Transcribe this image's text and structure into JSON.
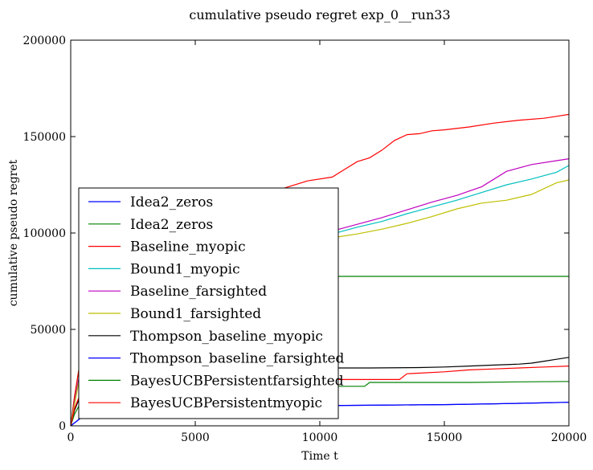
{
  "chart_data": {
    "type": "line",
    "title": "cumulative pseudo regret exp_0__run33",
    "xlabel": "Time t",
    "ylabel": "cumulative pseudo regret",
    "xlim": [
      0,
      20000
    ],
    "ylim": [
      0,
      200000
    ],
    "x_ticks": [
      0,
      5000,
      10000,
      15000,
      20000
    ],
    "y_ticks": [
      0,
      50000,
      100000,
      150000,
      200000
    ],
    "x_tick_labels": [
      "0",
      "5000",
      "10000",
      "15000",
      "20000"
    ],
    "y_tick_labels": [
      "0",
      "50000",
      "100000",
      "150000",
      "200000"
    ],
    "grid": false,
    "legend_position": "lower-left",
    "series": [
      {
        "name": "Idea2_zeros",
        "color": "#0000ff",
        "x": [
          0,
          150,
          400,
          800,
          1500,
          2500,
          4000,
          5500,
          7000,
          8500,
          10000,
          11000,
          13000,
          15000,
          17000,
          19000,
          20000
        ],
        "y": [
          0,
          1500,
          4000,
          6500,
          8000,
          9000,
          9800,
          10000,
          10200,
          10300,
          10400,
          10600,
          10800,
          11000,
          11400,
          11900,
          12200
        ]
      },
      {
        "name": "Idea2_zeros",
        "color": "#008000",
        "x": [
          0,
          150,
          400,
          800,
          1500,
          2500,
          3500,
          4500,
          5000,
          5200,
          20000
        ],
        "y": [
          0,
          15000,
          35000,
          48000,
          58000,
          66000,
          72000,
          76000,
          77000,
          77500,
          77500
        ]
      },
      {
        "name": "Baseline_myopic",
        "color": "#ff0000",
        "x": [
          0,
          150,
          400,
          800,
          1500,
          2500,
          3500,
          4500,
          5500,
          6500,
          7500,
          8500,
          9500,
          10500,
          11000,
          11500,
          12000,
          12500,
          13000,
          13500,
          14000,
          14500,
          15000,
          16000,
          17000,
          18000,
          19000,
          19500,
          20000
        ],
        "y": [
          0,
          15000,
          35000,
          52000,
          65000,
          78000,
          90000,
          100000,
          107000,
          113000,
          118000,
          123000,
          127000,
          129000,
          133000,
          137000,
          139000,
          143000,
          148000,
          151000,
          151500,
          153000,
          153500,
          155000,
          157000,
          158500,
          159500,
          160500,
          161500
        ]
      },
      {
        "name": "Bound1_myopic",
        "color": "#00bfbf",
        "x": [
          0,
          150,
          400,
          800,
          1500,
          2500,
          3500,
          4500,
          5500,
          6500,
          7500,
          8500,
          9500,
          10500,
          11500,
          12500,
          13500,
          14500,
          15500,
          16500,
          17500,
          18500,
          19500,
          20000
        ],
        "y": [
          0,
          12000,
          30000,
          45000,
          56000,
          65000,
          72000,
          78000,
          83000,
          88000,
          92000,
          95000,
          97000,
          99500,
          103000,
          106000,
          110000,
          113500,
          117000,
          121000,
          125000,
          128000,
          131500,
          135000
        ]
      },
      {
        "name": "Baseline_farsighted",
        "color": "#bf00bf",
        "x": [
          0,
          150,
          400,
          800,
          1500,
          2500,
          3500,
          4500,
          5500,
          6500,
          7500,
          8500,
          9500,
          10500,
          11500,
          12500,
          13500,
          14500,
          15500,
          16500,
          17500,
          18500,
          19500,
          20000
        ],
        "y": [
          0,
          12000,
          30000,
          46000,
          57000,
          66000,
          73000,
          79000,
          84000,
          89000,
          93000,
          96000,
          98000,
          101000,
          104500,
          108000,
          112000,
          116000,
          119500,
          124000,
          132000,
          135500,
          137500,
          138500
        ]
      },
      {
        "name": "Bound1_farsighted",
        "color": "#bfbf00",
        "x": [
          0,
          150,
          400,
          800,
          1500,
          2500,
          3500,
          4500,
          5500,
          6500,
          7500,
          8500,
          9500,
          10500,
          11500,
          12500,
          13500,
          14500,
          15500,
          16500,
          17500,
          18500,
          19500,
          20000
        ],
        "y": [
          0,
          11000,
          28000,
          43000,
          54000,
          63000,
          70000,
          76000,
          81000,
          85000,
          89000,
          92000,
          95000,
          97500,
          99500,
          102000,
          105000,
          108500,
          112500,
          115500,
          117000,
          120000,
          126000,
          127500
        ]
      },
      {
        "name": "Thompson_baseline_myopic",
        "color": "#000000",
        "x": [
          0,
          150,
          400,
          800,
          1500,
          2500,
          3500,
          4500,
          6000,
          8000,
          10000,
          12000,
          14000,
          15000,
          16000,
          17000,
          18000,
          18500,
          19000,
          19500,
          20000
        ],
        "y": [
          0,
          8000,
          16000,
          21000,
          24000,
          26500,
          28000,
          29000,
          29500,
          30000,
          30000,
          30000,
          30200,
          30500,
          31000,
          31500,
          32000,
          32500,
          33500,
          34500,
          35500
        ]
      },
      {
        "name": "Thompson_baseline_farsighted",
        "color": "#0000ff",
        "x": [
          0,
          150,
          400,
          800,
          1500,
          2500,
          4000,
          5500,
          7000,
          8500,
          10000,
          11000,
          13000,
          15000,
          17000,
          19000,
          20000
        ],
        "y": [
          0,
          1500,
          4000,
          6500,
          8000,
          9000,
          9800,
          10000,
          10200,
          10300,
          10400,
          10600,
          10800,
          11000,
          11400,
          11900,
          12200
        ]
      },
      {
        "name": "BayesUCBPersistentfarsighted",
        "color": "#008000",
        "x": [
          0,
          150,
          400,
          800,
          1500,
          2500,
          3500,
          4500,
          6000,
          8000,
          10000,
          11800,
          12000,
          14000,
          16000,
          18000,
          20000
        ],
        "y": [
          0,
          6000,
          12000,
          15500,
          17500,
          18500,
          19500,
          20000,
          20500,
          20500,
          20500,
          20500,
          22500,
          22500,
          22500,
          22800,
          23000
        ]
      },
      {
        "name": "BayesUCBPersistentmyopic",
        "color": "#ff0000",
        "x": [
          0,
          150,
          400,
          800,
          1500,
          2500,
          3500,
          4500,
          6000,
          8000,
          10000,
          12000,
          13200,
          13500,
          15000,
          16000,
          17000,
          18000,
          19000,
          20000
        ],
        "y": [
          0,
          9000,
          17000,
          20000,
          21500,
          22500,
          23500,
          24000,
          24000,
          24000,
          24000,
          24000,
          24000,
          27000,
          28000,
          29000,
          29500,
          30000,
          30500,
          31000
        ]
      }
    ]
  }
}
